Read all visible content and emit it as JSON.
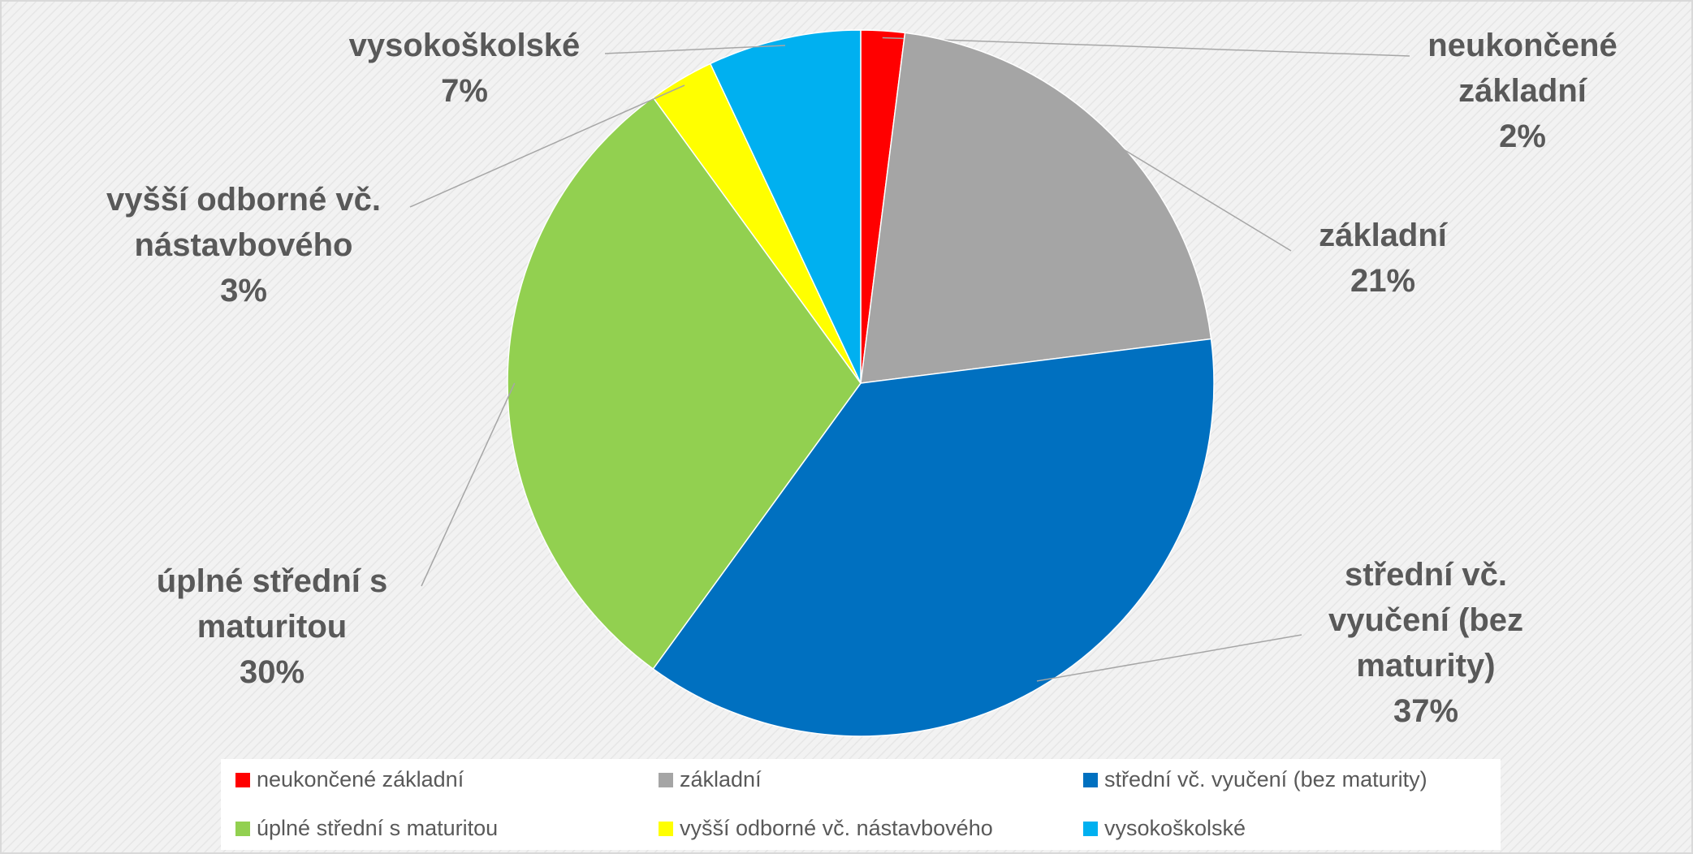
{
  "chart_data": {
    "type": "pie",
    "categories": [
      "neukončené základní",
      "základní",
      "střední vč. vyučení (bez maturity)",
      "úplné střední s maturitou",
      "vyšší odborné vč. nástavbového",
      "vysokoškolské"
    ],
    "values": [
      2,
      21,
      37,
      30,
      3,
      7
    ],
    "value_labels": [
      "2%",
      "21%",
      "37%",
      "30%",
      "3%",
      "7%"
    ],
    "colors": [
      "#ff0000",
      "#a5a5a5",
      "#0070c0",
      "#92d050",
      "#ffff00",
      "#00b0f0"
    ],
    "legend": "bottom"
  }
}
